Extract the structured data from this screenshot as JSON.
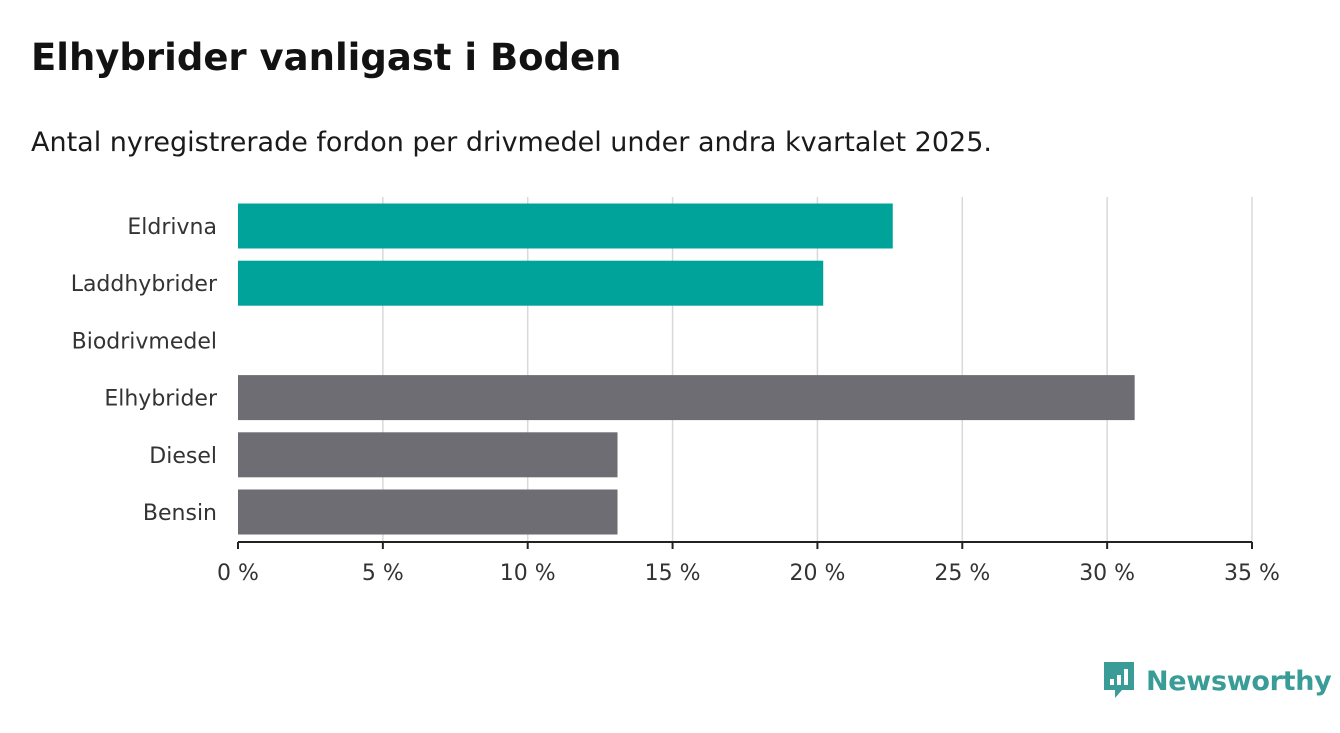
{
  "header": {
    "title": "Elhybrider vanligast i Boden",
    "subtitle": "Antal nyregistrerade fordon per drivmedel under andra kvartalet 2025."
  },
  "chart_data": {
    "type": "bar",
    "orientation": "horizontal",
    "categories": [
      "Eldrivna",
      "Laddhybrider",
      "Biodrivmedel",
      "Elhybrider",
      "Diesel",
      "Bensin"
    ],
    "values": [
      22.6,
      20.2,
      0,
      30.95,
      13.1,
      13.1
    ],
    "bar_colors": [
      "#00a39a",
      "#00a39a",
      "#00a39a",
      "#6e6d74",
      "#6e6d74",
      "#6e6d74"
    ],
    "xlim": [
      0,
      35
    ],
    "x_ticks": [
      0,
      5,
      10,
      15,
      20,
      25,
      30,
      35
    ],
    "x_tick_labels": [
      "0 %",
      "5 %",
      "10 %",
      "15 %",
      "20 %",
      "25 %",
      "30 %",
      "35 %"
    ],
    "grid": true,
    "xlabel": "",
    "ylabel": ""
  },
  "branding": {
    "name": "Newsworthy",
    "logo_icon": "bar-chart-speech-bubble-icon",
    "color": "#3a9c96"
  }
}
